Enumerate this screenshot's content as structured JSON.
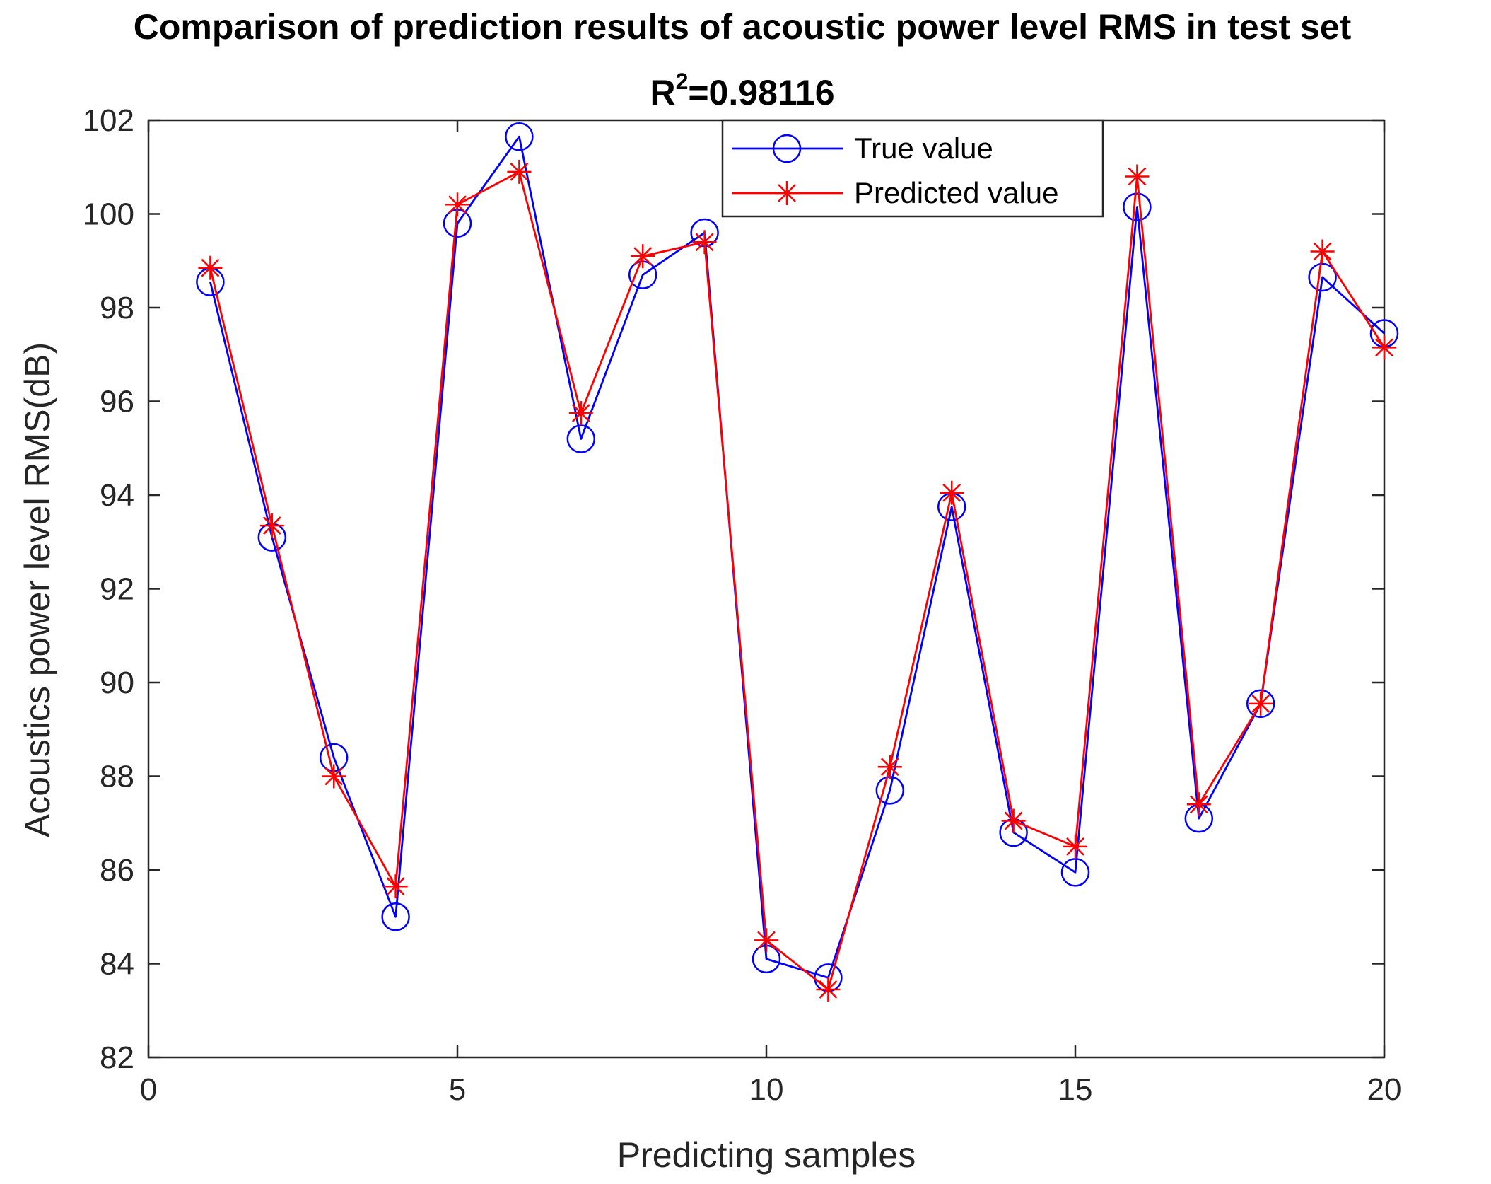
{
  "chart_data": {
    "type": "line",
    "title": "Comparison of prediction results of acoustic power level RMS in test set",
    "subtitle_prefix": "R",
    "subtitle_superscript": "2",
    "subtitle_value": "=0.98116",
    "xlabel": "Predicting samples",
    "ylabel": "Acoustics power level RMS(dB)",
    "xlim": [
      0,
      20
    ],
    "ylim": [
      82,
      102
    ],
    "xticks": [
      0,
      5,
      10,
      15,
      20
    ],
    "yticks": [
      82,
      84,
      86,
      88,
      90,
      92,
      94,
      96,
      98,
      100,
      102
    ],
    "grid": false,
    "legend_position": "top-center",
    "x": [
      1,
      2,
      3,
      4,
      5,
      6,
      7,
      8,
      9,
      10,
      11,
      12,
      13,
      14,
      15,
      16,
      17,
      18,
      19,
      20
    ],
    "series": [
      {
        "name": "True value",
        "color": "#0000ff",
        "marker": "circle",
        "values": [
          98.55,
          93.1,
          88.4,
          85.0,
          99.8,
          101.65,
          95.2,
          98.7,
          99.6,
          84.1,
          83.7,
          87.7,
          93.75,
          86.8,
          85.95,
          100.15,
          87.1,
          89.55,
          98.65,
          97.45
        ]
      },
      {
        "name": "Predicted value",
        "color": "#ff0000",
        "marker": "asterisk",
        "values": [
          98.85,
          93.35,
          88.0,
          85.65,
          100.2,
          100.9,
          95.75,
          99.1,
          99.4,
          84.5,
          83.45,
          88.2,
          94.05,
          87.05,
          86.5,
          100.8,
          87.4,
          89.55,
          99.2,
          97.15
        ]
      }
    ]
  }
}
